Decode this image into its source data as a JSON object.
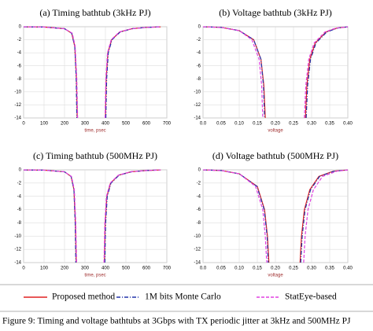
{
  "chart_data": [
    {
      "type": "line",
      "title": "(a) Timing bathtub (3kHz PJ)",
      "xlabel": "time, psec",
      "xlim": [
        0,
        700
      ],
      "xticks": [
        0,
        100,
        200,
        300,
        400,
        500,
        600,
        700
      ],
      "ylim": [
        -14,
        0
      ],
      "yticks": [
        0,
        -2,
        -4,
        -6,
        -8,
        -10,
        -12,
        -14
      ],
      "grid": true,
      "series": [
        {
          "name": "Proposed method",
          "color": "#e02020",
          "linestyle": "solid",
          "x": [
            0,
            100,
            200,
            235,
            250,
            258,
            262,
            null,
            400,
            404,
            412,
            430,
            470,
            530,
            600,
            670
          ],
          "values": [
            -0.02,
            -0.05,
            -0.3,
            -1,
            -3,
            -8,
            -14,
            null,
            -14,
            -8,
            -4,
            -2,
            -0.8,
            -0.3,
            -0.1,
            -0.02
          ]
        },
        {
          "name": "1M bits Monte Carlo",
          "color": "#2233aa",
          "linestyle": "dashdot",
          "x": [
            0,
            100,
            200,
            235,
            250,
            257,
            260,
            null,
            402,
            406,
            414,
            432,
            472,
            532,
            600,
            670
          ],
          "values": [
            -0.02,
            -0.05,
            -0.3,
            -1,
            -3,
            -8,
            -14,
            null,
            -14,
            -8,
            -4,
            -2,
            -0.8,
            -0.3,
            -0.1,
            -0.02
          ]
        },
        {
          "name": "StatEye-based",
          "color": "#e040e0",
          "linestyle": "dashed",
          "x": [
            0,
            100,
            200,
            238,
            252,
            260,
            264,
            null,
            398,
            402,
            410,
            428,
            468,
            528,
            600,
            670
          ],
          "values": [
            -0.02,
            -0.05,
            -0.3,
            -1,
            -3,
            -8,
            -14,
            null,
            -14,
            -8,
            -4,
            -2,
            -0.8,
            -0.3,
            -0.1,
            -0.02
          ]
        }
      ]
    },
    {
      "type": "line",
      "title": "(b) Voltage bathtub (3kHz PJ)",
      "xlabel": "voltage",
      "xlim": [
        0,
        0.4
      ],
      "xticks": [
        {
          "value": 0,
          "label": "0.0"
        },
        0.05,
        {
          "value": 0.1,
          "label": "0.10"
        },
        0.15,
        {
          "value": 0.2,
          "label": "0.20"
        },
        0.25,
        {
          "value": 0.3,
          "label": "0.30"
        },
        0.35,
        {
          "value": 0.4,
          "label": "0.40"
        }
      ],
      "ylim": [
        -14,
        0
      ],
      "yticks": [
        0,
        -2,
        -4,
        -6,
        -8,
        -10,
        -12,
        -14
      ],
      "grid": true,
      "series": [
        {
          "color": "#e02020",
          "linestyle": "solid",
          "x": [
            0,
            0.05,
            0.1,
            0.14,
            0.16,
            0.168,
            0.172,
            null,
            0.283,
            0.287,
            0.295,
            0.31,
            0.34,
            0.37,
            0.4
          ],
          "values": [
            -0.01,
            -0.1,
            -0.6,
            -2,
            -5,
            -9,
            -14,
            null,
            -14,
            -9,
            -5,
            -2.5,
            -0.8,
            -0.2,
            -0.02
          ]
        },
        {
          "color": "#2233aa",
          "linestyle": "dashdot",
          "x": [
            0,
            0.05,
            0.1,
            0.14,
            0.16,
            0.167,
            0.17,
            null,
            0.285,
            0.289,
            0.297,
            0.312,
            0.342,
            0.372,
            0.4
          ],
          "values": [
            -0.01,
            -0.1,
            -0.6,
            -2,
            -5,
            -9,
            -14,
            null,
            -14,
            -9,
            -5,
            -2.5,
            -0.8,
            -0.2,
            -0.02
          ]
        },
        {
          "color": "#e040e0",
          "linestyle": "dashed",
          "x": [
            0,
            0.05,
            0.1,
            0.135,
            0.155,
            0.162,
            0.165,
            null,
            0.28,
            0.284,
            0.292,
            0.307,
            0.337,
            0.367,
            0.4
          ],
          "values": [
            -0.01,
            -0.1,
            -0.6,
            -2,
            -5,
            -9,
            -14,
            null,
            -14,
            -9,
            -5,
            -2.5,
            -0.8,
            -0.2,
            -0.02
          ]
        }
      ]
    },
    {
      "type": "line",
      "title": "(c) Timing bathtub (500MHz PJ)",
      "xlabel": "time, psec",
      "xlim": [
        0,
        700
      ],
      "xticks": [
        0,
        100,
        200,
        300,
        400,
        500,
        600,
        700
      ],
      "ylim": [
        -14,
        0
      ],
      "yticks": [
        0,
        -2,
        -4,
        -6,
        -8,
        -10,
        -12,
        -14
      ],
      "grid": true,
      "series": [
        {
          "color": "#e02020",
          "linestyle": "solid",
          "x": [
            0,
            100,
            200,
            232,
            246,
            253,
            257,
            null,
            395,
            399,
            407,
            425,
            465,
            525,
            600,
            670
          ],
          "values": [
            -0.02,
            -0.05,
            -0.3,
            -1,
            -3,
            -8,
            -14,
            null,
            -14,
            -8,
            -4,
            -2,
            -0.8,
            -0.3,
            -0.1,
            -0.02
          ]
        },
        {
          "color": "#2233aa",
          "linestyle": "dashdot",
          "x": [
            0,
            100,
            200,
            232,
            246,
            252,
            255,
            null,
            397,
            401,
            409,
            427,
            467,
            527,
            600,
            670
          ],
          "values": [
            -0.02,
            -0.05,
            -0.3,
            -1,
            -3,
            -8,
            -14,
            null,
            -14,
            -8,
            -4,
            -2,
            -0.8,
            -0.3,
            -0.1,
            -0.02
          ]
        },
        {
          "color": "#e040e0",
          "linestyle": "dashed",
          "x": [
            0,
            100,
            200,
            234,
            248,
            255,
            259,
            null,
            393,
            397,
            405,
            423,
            463,
            523,
            600,
            670
          ],
          "values": [
            -0.02,
            -0.05,
            -0.3,
            -1,
            -3,
            -8,
            -14,
            null,
            -14,
            -8,
            -4,
            -2,
            -0.8,
            -0.3,
            -0.1,
            -0.02
          ]
        }
      ]
    },
    {
      "type": "line",
      "title": "(d) Voltage bathtub (500MHz PJ)",
      "xlabel": "voltage",
      "xlim": [
        0,
        0.4
      ],
      "xticks": [
        {
          "value": 0,
          "label": "0.0"
        },
        0.05,
        {
          "value": 0.1,
          "label": "0.10"
        },
        0.15,
        {
          "value": 0.2,
          "label": "0.20"
        },
        0.25,
        {
          "value": 0.3,
          "label": "0.30"
        },
        0.35,
        {
          "value": 0.4,
          "label": "0.40"
        }
      ],
      "ylim": [
        -14,
        0
      ],
      "yticks": [
        0,
        -2,
        -4,
        -6,
        -8,
        -10,
        -12,
        -14
      ],
      "grid": true,
      "series": [
        {
          "color": "#e02020",
          "linestyle": "solid",
          "x": [
            0,
            0.05,
            0.1,
            0.15,
            0.17,
            0.178,
            0.182,
            null,
            0.268,
            0.272,
            0.28,
            0.295,
            0.32,
            0.36,
            0.4
          ],
          "values": [
            -0.01,
            -0.1,
            -0.6,
            -2.5,
            -6,
            -10,
            -14,
            null,
            -14,
            -10,
            -6,
            -3,
            -1,
            -0.2,
            -0.02
          ]
        },
        {
          "color": "#2233aa",
          "linestyle": "dashdot",
          "x": [
            0,
            0.05,
            0.1,
            0.149,
            0.169,
            0.177,
            0.18,
            null,
            0.27,
            0.274,
            0.282,
            0.297,
            0.322,
            0.362,
            0.4
          ],
          "values": [
            -0.01,
            -0.1,
            -0.6,
            -2.5,
            -6,
            -10,
            -14,
            null,
            -14,
            -10,
            -6,
            -3,
            -1,
            -0.2,
            -0.02
          ]
        },
        {
          "color": "#e040e0",
          "linestyle": "dashed",
          "x": [
            0,
            0.05,
            0.1,
            0.145,
            0.165,
            0.172,
            0.176,
            null,
            0.278,
            0.282,
            0.29,
            0.305,
            0.33,
            0.37,
            0.4
          ],
          "values": [
            -0.01,
            -0.1,
            -0.6,
            -2.5,
            -6,
            -10,
            -14,
            null,
            -14,
            -10,
            -6,
            -3,
            -1,
            -0.2,
            -0.02
          ]
        }
      ]
    }
  ],
  "caption": "Figure 9: Timing and voltage bathtubs at 3Gbps with TX periodic jitter at 3kHz and 500MHz PJ"
}
